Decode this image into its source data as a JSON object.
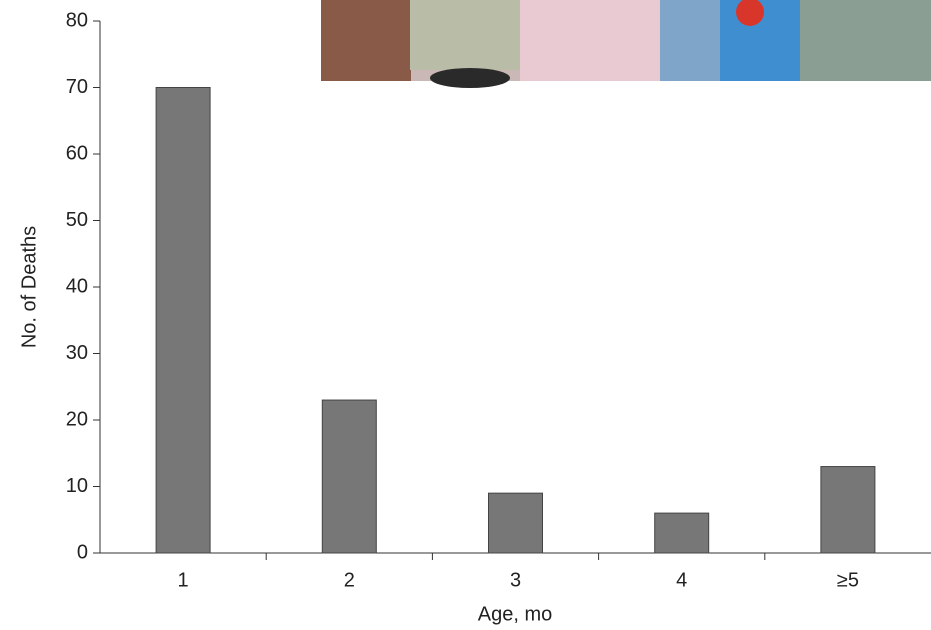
{
  "chart_data": {
    "type": "bar",
    "x_label": "Age, mo",
    "y_label": "No. of Deaths",
    "categories": [
      "1",
      "2",
      "3",
      "4",
      "≥5"
    ],
    "values": [
      70,
      23,
      9,
      6,
      13
    ],
    "color": "#777777",
    "ylim": [
      0,
      80
    ],
    "yticks": [
      0,
      10,
      20,
      30,
      40,
      50,
      60,
      70,
      80
    ]
  }
}
